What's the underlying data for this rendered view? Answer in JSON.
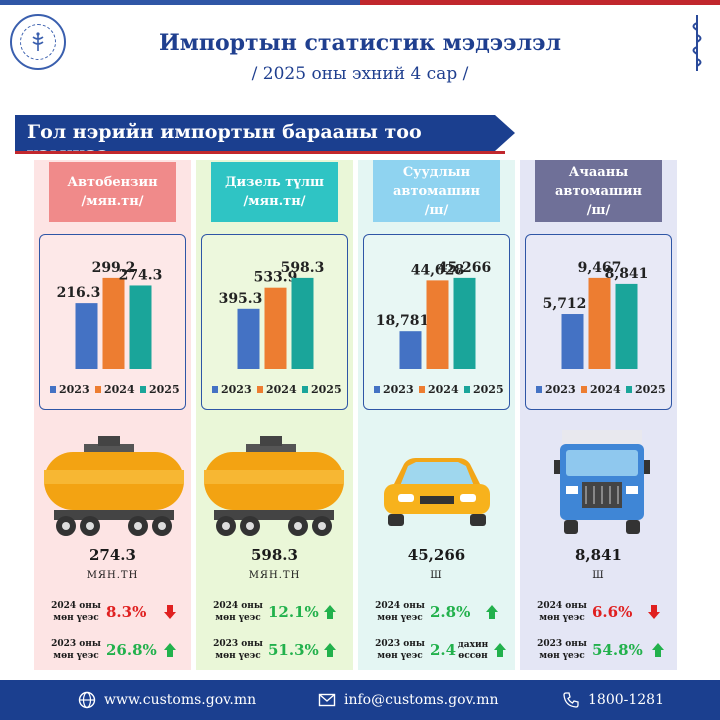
{
  "header": {
    "title": "Импортын статистик мэдээлэл",
    "subtitle": "/ 2025 оны эхний 4 сар /"
  },
  "banner": "Гол нэрийн импортын барааны тоо хэмжээ",
  "legend_years": [
    "2023",
    "2024",
    "2025"
  ],
  "colors": {
    "y2023": "#4472c4",
    "y2024": "#ed7d31",
    "y2025": "#1aa59a",
    "up": "#22b14c",
    "down": "#e02020",
    "navy": "#1b3f8f"
  },
  "chart_data": [
    {
      "type": "bar",
      "title": "Автобензин /мян.тн/",
      "categories": [
        "2023",
        "2024",
        "2025"
      ],
      "values": [
        216.3,
        299.2,
        274.3
      ],
      "value_labels": [
        "216.3",
        "299.2",
        "274.3"
      ]
    },
    {
      "type": "bar",
      "title": "Дизель түлш /мян.тн/",
      "categories": [
        "2023",
        "2024",
        "2025"
      ],
      "values": [
        395.3,
        533.9,
        598.3
      ],
      "value_labels": [
        "395.3",
        "533.9",
        "598.3"
      ]
    },
    {
      "type": "bar",
      "title": "Суудлын автомашин /ш/",
      "categories": [
        "2023",
        "2024",
        "2025"
      ],
      "values": [
        18781,
        44028,
        45266
      ],
      "value_labels": [
        "18,781",
        "44,028",
        "45,266"
      ]
    },
    {
      "type": "bar",
      "title": "Ачааны автомашин /ш/",
      "categories": [
        "2023",
        "2024",
        "2025"
      ],
      "values": [
        5712,
        9467,
        8841
      ],
      "value_labels": [
        "5,712",
        "9,467",
        "8,841"
      ]
    }
  ],
  "columns": [
    {
      "category": [
        "Автобензин",
        "/мян.тн/"
      ],
      "value": "274.3",
      "unit": "МЯН.ТН",
      "cmp1": {
        "label": [
          "2024 оны",
          "мөн үеэс"
        ],
        "value": "8.3%",
        "direction": "down"
      },
      "cmp2": {
        "label": [
          "2023 оны",
          "мөн үеэс"
        ],
        "value": "26.8%",
        "direction": "up"
      }
    },
    {
      "category": [
        "Дизель түлш",
        "/мян.тн/"
      ],
      "value": "598.3",
      "unit": "МЯН.ТН",
      "cmp1": {
        "label": [
          "2024 оны",
          "мөн үеэс"
        ],
        "value": "12.1%",
        "direction": "up"
      },
      "cmp2": {
        "label": [
          "2023 оны",
          "мөн үеэс"
        ],
        "value": "51.3%",
        "direction": "up"
      }
    },
    {
      "category": [
        "Суудлын",
        "автомашин",
        "/ш/"
      ],
      "value": "45,266",
      "unit": "Ш",
      "cmp1": {
        "label": [
          "2024 оны",
          "мөн үеэс"
        ],
        "value": "2.8%",
        "direction": "up"
      },
      "cmp2": {
        "label": [
          "2023 оны",
          "мөн үеэс"
        ],
        "value": "2.4",
        "extra": [
          "дахин",
          "өссөн"
        ],
        "direction": "up"
      }
    },
    {
      "category": [
        "Ачааны",
        "автомашин",
        "/ш/"
      ],
      "value": "8,841",
      "unit": "Ш",
      "cmp1": {
        "label": [
          "2024 оны",
          "мөн үеэс"
        ],
        "value": "6.6%",
        "direction": "down"
      },
      "cmp2": {
        "label": [
          "2023 оны",
          "мөн үеэс"
        ],
        "value": "54.8%",
        "direction": "up"
      }
    }
  ],
  "footer": {
    "website": "www.customs.gov.mn",
    "email": "info@customs.gov.mn",
    "phone": "1800-1281"
  },
  "icons": [
    "customs-logo-icon",
    "mongolian-script-icon",
    "globe-icon",
    "mail-icon",
    "phone-icon",
    "tank-car-icon",
    "passenger-car-icon",
    "truck-icon",
    "arrow-up-icon",
    "arrow-down-icon"
  ]
}
